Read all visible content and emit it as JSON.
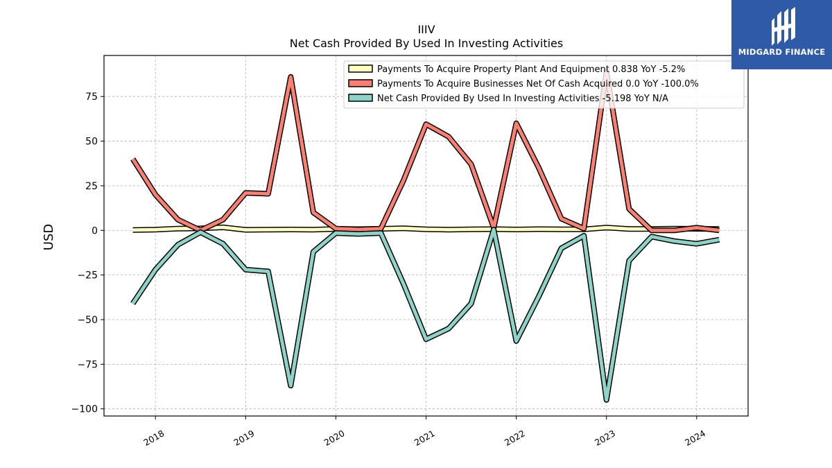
{
  "logo": {
    "text": "MIDGARD FINANCE",
    "background": "#2f5aa8"
  },
  "chart_data": {
    "type": "line",
    "title": "IIIV",
    "subtitle": "Net Cash Provided By Used In Investing Activities",
    "xlabel": "",
    "ylabel": "USD",
    "ylim": [
      -104,
      98
    ],
    "xlim": [
      2017.43,
      2024.57
    ],
    "yticks": [
      -100,
      -75,
      -50,
      -25,
      0,
      25,
      50,
      75
    ],
    "ytick_labels": [
      "−100",
      "−75",
      "−50",
      "−25",
      "0",
      "25",
      "50",
      "75"
    ],
    "xticks": [
      2018,
      2019,
      2020,
      2021,
      2022,
      2023,
      2024
    ],
    "xtick_labels": [
      "2018",
      "2019",
      "2020",
      "2021",
      "2022",
      "2023",
      "2024"
    ],
    "grid": true,
    "legend_position": "top-right",
    "x": [
      2017.75,
      2018.0,
      2018.25,
      2018.5,
      2018.75,
      2019.0,
      2019.25,
      2019.5,
      2019.75,
      2020.0,
      2020.25,
      2020.5,
      2020.75,
      2021.0,
      2021.25,
      2021.5,
      2021.75,
      2022.0,
      2022.25,
      2022.5,
      2022.75,
      2023.0,
      2023.25,
      2023.5,
      2023.75,
      2024.0,
      2024.25
    ],
    "series": [
      {
        "name": "Payments To Acquire Property Plant And Equipment  0.838 YoY -5.2%",
        "color": "#ffffbf",
        "values": [
          0.2,
          0.4,
          1.0,
          1.1,
          1.7,
          0.3,
          0.4,
          0.5,
          0.4,
          0.8,
          0.7,
          0.9,
          1.2,
          0.6,
          0.4,
          0.6,
          0.7,
          0.5,
          0.7,
          0.6,
          0.6,
          1.6,
          0.8,
          0.8,
          1.0,
          0.9,
          0.8
        ]
      },
      {
        "name": "Payments To Acquire Businesses Net Of Cash Acquired  0.0 YoY -100.0%",
        "color": "#fb8072",
        "values": [
          40,
          20,
          6,
          0,
          6,
          21,
          20.5,
          86,
          10,
          1,
          0.5,
          1,
          28,
          59.5,
          52.5,
          37,
          1.5,
          60,
          35,
          6.5,
          1,
          89,
          12,
          0,
          0,
          1.5,
          0
        ]
      },
      {
        "name": "Net Cash Provided By Used In Investing Activities  -5.198 YoY N/A",
        "color": "#8dd3c7",
        "values": [
          -41,
          -22,
          -8,
          -1,
          -7.5,
          -22,
          -23,
          -87,
          -12,
          -1.5,
          -2,
          -1.5,
          -30,
          -61,
          -55,
          -41,
          0.5,
          -62,
          -37,
          -10,
          -3,
          -95,
          -17,
          -3.5,
          -6,
          -7.5,
          -5.2
        ]
      }
    ]
  }
}
